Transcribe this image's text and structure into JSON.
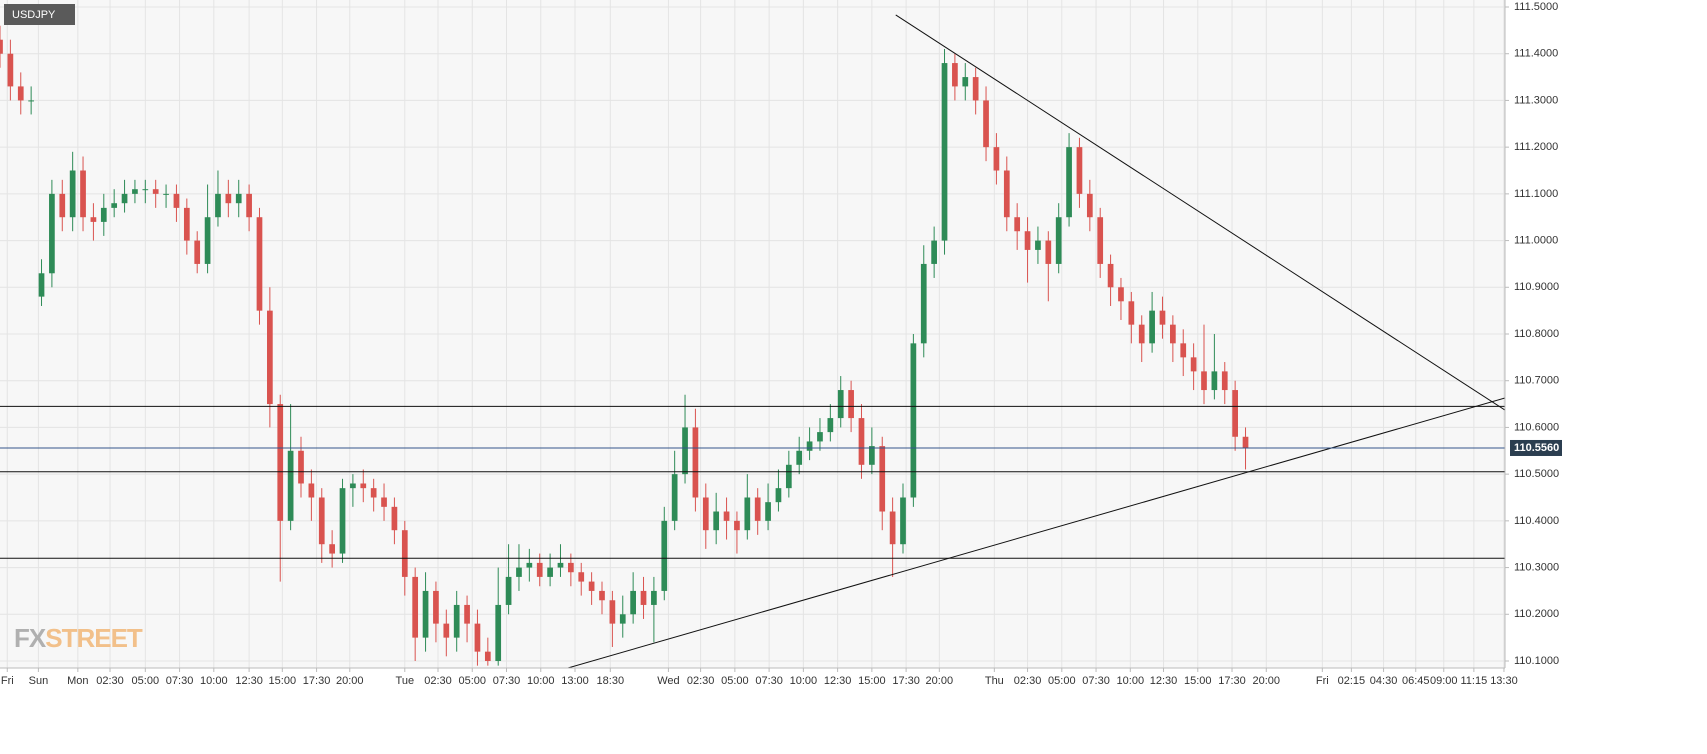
{
  "chart_data": {
    "type": "candlestick",
    "title": "USDJPY",
    "watermark": [
      "FX",
      "STREET"
    ],
    "x": [
      0,
      1,
      2,
      3,
      4,
      5,
      6,
      7,
      8,
      9,
      10,
      11,
      12,
      13,
      14,
      15,
      16,
      17,
      18,
      19,
      20,
      21,
      22,
      23,
      24,
      25,
      26,
      27,
      28,
      29,
      30,
      31,
      32,
      33,
      34,
      35,
      36,
      37,
      38,
      39,
      40,
      41,
      42,
      43,
      44,
      45,
      46,
      47,
      48,
      49,
      50,
      51,
      52,
      53,
      54,
      55,
      56,
      57,
      58,
      59,
      60,
      61,
      62,
      63,
      64,
      65,
      66,
      67,
      68,
      69,
      70,
      71,
      72,
      73,
      74,
      75,
      76,
      77,
      78,
      79,
      80,
      81,
      82,
      83,
      84,
      85,
      86,
      87,
      88,
      89,
      90,
      91,
      92,
      93,
      94,
      95,
      96,
      97,
      98,
      99,
      100,
      101,
      102,
      103,
      104,
      105,
      106,
      107,
      108,
      109,
      110,
      111,
      112,
      113,
      114,
      115,
      116,
      117,
      118,
      119,
      120
    ],
    "open": [
      111.43,
      111.4,
      111.33,
      111.3,
      110.88,
      110.93,
      111.1,
      111.05,
      111.15,
      111.05,
      111.04,
      111.07,
      111.08,
      111.1,
      111.11,
      111.11,
      111.1,
      111.1,
      111.07,
      111.0,
      110.95,
      111.05,
      111.1,
      111.08,
      111.1,
      111.05,
      110.85,
      110.65,
      110.4,
      110.55,
      110.48,
      110.45,
      110.35,
      110.33,
      110.47,
      110.48,
      110.47,
      110.45,
      110.43,
      110.38,
      110.28,
      110.15,
      110.25,
      110.18,
      110.15,
      110.22,
      110.18,
      110.12,
      110.1,
      110.22,
      110.28,
      110.3,
      110.31,
      110.28,
      110.3,
      110.31,
      110.29,
      110.27,
      110.25,
      110.23,
      110.18,
      110.2,
      110.25,
      110.22,
      110.25,
      110.4,
      110.5,
      110.6,
      110.45,
      110.38,
      110.42,
      110.4,
      110.38,
      110.45,
      110.4,
      110.44,
      110.47,
      110.52,
      110.55,
      110.57,
      110.59,
      110.62,
      110.68,
      110.62,
      110.52,
      110.56,
      110.42,
      110.35,
      110.45,
      110.78,
      110.95,
      111.0,
      111.38,
      111.33,
      111.35,
      111.3,
      111.2,
      111.15,
      111.05,
      111.02,
      110.98,
      111.0,
      110.95,
      111.05,
      111.2,
      111.1,
      111.05,
      110.95,
      110.9,
      110.87,
      110.82,
      110.78,
      110.85,
      110.82,
      110.78,
      110.75,
      110.72,
      110.68,
      110.72,
      110.68,
      110.58
    ],
    "high": [
      111.46,
      111.43,
      111.36,
      111.33,
      110.96,
      111.13,
      111.13,
      111.19,
      111.18,
      111.08,
      111.1,
      111.11,
      111.13,
      111.13,
      111.13,
      111.13,
      111.12,
      111.12,
      111.09,
      111.02,
      111.12,
      111.15,
      111.13,
      111.13,
      111.12,
      111.07,
      110.9,
      110.67,
      110.65,
      110.58,
      110.51,
      110.47,
      110.38,
      110.49,
      110.5,
      110.51,
      110.49,
      110.48,
      110.45,
      110.4,
      110.3,
      110.29,
      110.27,
      110.21,
      110.25,
      110.24,
      110.21,
      110.15,
      110.3,
      110.35,
      110.35,
      110.34,
      110.33,
      110.33,
      110.35,
      110.33,
      110.31,
      110.29,
      110.27,
      110.25,
      110.24,
      110.29,
      110.28,
      110.28,
      110.43,
      110.55,
      110.67,
      110.64,
      110.48,
      110.46,
      110.45,
      110.42,
      110.5,
      110.47,
      110.48,
      110.51,
      110.55,
      110.58,
      110.6,
      110.62,
      110.65,
      110.71,
      110.7,
      110.65,
      110.6,
      110.58,
      110.45,
      110.48,
      110.8,
      110.99,
      111.03,
      111.41,
      111.4,
      111.38,
      111.37,
      111.33,
      111.23,
      111.18,
      111.08,
      111.05,
      111.03,
      111.02,
      111.08,
      111.23,
      111.22,
      111.13,
      111.07,
      110.97,
      110.92,
      110.89,
      110.84,
      110.89,
      110.88,
      110.84,
      110.81,
      110.78,
      110.82,
      110.8,
      110.74,
      110.7,
      110.6
    ],
    "low": [
      111.37,
      111.3,
      111.27,
      111.27,
      110.86,
      110.9,
      111.02,
      111.02,
      111.02,
      111.0,
      111.01,
      111.05,
      111.06,
      111.08,
      111.08,
      111.07,
      111.07,
      111.04,
      110.97,
      110.93,
      110.93,
      111.03,
      111.05,
      111.05,
      111.02,
      110.82,
      110.6,
      110.27,
      110.38,
      110.45,
      110.4,
      110.31,
      110.3,
      110.31,
      110.43,
      110.44,
      110.42,
      110.4,
      110.35,
      110.24,
      110.1,
      110.12,
      110.14,
      110.11,
      110.12,
      110.14,
      110.09,
      110.09,
      110.09,
      110.2,
      110.25,
      110.27,
      110.26,
      110.26,
      110.28,
      110.26,
      110.24,
      110.22,
      110.2,
      110.13,
      110.15,
      110.18,
      110.19,
      110.14,
      110.23,
      110.38,
      110.48,
      110.42,
      110.34,
      110.35,
      110.36,
      110.33,
      110.36,
      110.37,
      110.38,
      110.42,
      110.45,
      110.5,
      110.53,
      110.55,
      110.57,
      110.6,
      110.59,
      110.49,
      110.5,
      110.38,
      110.28,
      110.33,
      110.43,
      110.75,
      110.92,
      110.97,
      111.3,
      111.3,
      111.27,
      111.17,
      111.12,
      111.02,
      110.98,
      110.91,
      110.95,
      110.87,
      110.93,
      111.03,
      111.07,
      111.02,
      110.92,
      110.86,
      110.83,
      110.78,
      110.74,
      110.76,
      110.79,
      110.74,
      110.71,
      110.68,
      110.65,
      110.66,
      110.65,
      110.55,
      110.51
    ],
    "close": [
      111.4,
      111.33,
      111.3,
      111.3,
      110.93,
      111.1,
      111.05,
      111.15,
      111.05,
      111.04,
      111.07,
      111.08,
      111.1,
      111.11,
      111.11,
      111.1,
      111.1,
      111.07,
      111.0,
      110.95,
      111.05,
      111.1,
      111.08,
      111.1,
      111.05,
      110.85,
      110.65,
      110.4,
      110.55,
      110.48,
      110.45,
      110.35,
      110.33,
      110.47,
      110.48,
      110.47,
      110.45,
      110.43,
      110.38,
      110.28,
      110.15,
      110.25,
      110.18,
      110.15,
      110.22,
      110.18,
      110.12,
      110.1,
      110.22,
      110.28,
      110.3,
      110.31,
      110.28,
      110.3,
      110.31,
      110.29,
      110.27,
      110.25,
      110.23,
      110.18,
      110.2,
      110.25,
      110.22,
      110.25,
      110.4,
      110.5,
      110.6,
      110.45,
      110.38,
      110.42,
      110.4,
      110.38,
      110.45,
      110.4,
      110.44,
      110.47,
      110.52,
      110.55,
      110.57,
      110.59,
      110.62,
      110.68,
      110.62,
      110.52,
      110.56,
      110.42,
      110.35,
      110.45,
      110.78,
      110.95,
      111.0,
      111.38,
      111.33,
      111.35,
      111.3,
      111.2,
      111.15,
      111.05,
      111.02,
      110.98,
      111.0,
      110.95,
      111.05,
      111.2,
      111.1,
      111.05,
      110.95,
      110.9,
      110.87,
      110.82,
      110.78,
      110.85,
      110.82,
      110.78,
      110.75,
      110.72,
      110.68,
      110.72,
      110.68,
      110.58,
      110.556
    ],
    "up_color": "#2e8b57",
    "down_color": "#d9534f",
    "levels": [
      110.645,
      110.505,
      110.32
    ],
    "last": {
      "value": 110.556,
      "label": "110.5560"
    },
    "trendlines": [
      {
        "x": [
          86.3,
          145
        ],
        "y": [
          111.483,
          110.637
        ]
      },
      {
        "x": [
          54.4,
          145
        ],
        "y": [
          110.083,
          110.663
        ]
      }
    ],
    "xlim": [
      0,
      145
    ],
    "ylim": [
      110.085,
      111.515
    ],
    "yticks": [
      {
        "value": 110.1,
        "label": "110.1000"
      },
      {
        "value": 110.2,
        "label": "110.2000"
      },
      {
        "value": 110.3,
        "label": "110.3000"
      },
      {
        "value": 110.4,
        "label": "110.4000"
      },
      {
        "value": 110.5,
        "label": "110.5000"
      },
      {
        "value": 110.6,
        "label": "110.6000"
      },
      {
        "value": 110.7,
        "label": "110.7000"
      },
      {
        "value": 110.8,
        "label": "110.8000"
      },
      {
        "value": 110.9,
        "label": "110.9000"
      },
      {
        "value": 111.0,
        "label": "111.0000"
      },
      {
        "value": 111.1,
        "label": "111.1000"
      },
      {
        "value": 111.2,
        "label": "111.2000"
      },
      {
        "value": 111.3,
        "label": "111.3000"
      },
      {
        "value": 111.4,
        "label": "111.4000"
      },
      {
        "value": 111.5,
        "label": "111.5000"
      }
    ],
    "xticks": [
      {
        "value": 0.7,
        "label": "Fri"
      },
      {
        "value": 3.7,
        "label": "Sun"
      },
      {
        "value": 7.5,
        "label": "Mon"
      },
      {
        "value": 10.6,
        "label": "02:30"
      },
      {
        "value": 14.0,
        "label": "05:00"
      },
      {
        "value": 17.3,
        "label": "07:30"
      },
      {
        "value": 20.6,
        "label": "10:00"
      },
      {
        "value": 24.0,
        "label": "12:30"
      },
      {
        "value": 27.2,
        "label": "15:00"
      },
      {
        "value": 30.5,
        "label": "17:30"
      },
      {
        "value": 33.7,
        "label": "20:00"
      },
      {
        "value": 39.0,
        "label": "Tue"
      },
      {
        "value": 42.2,
        "label": "02:30"
      },
      {
        "value": 45.5,
        "label": "05:00"
      },
      {
        "value": 48.8,
        "label": "07:30"
      },
      {
        "value": 52.1,
        "label": "10:00"
      },
      {
        "value": 55.4,
        "label": "13:00"
      },
      {
        "value": 58.8,
        "label": "18:30"
      },
      {
        "value": 64.4,
        "label": "Wed"
      },
      {
        "value": 67.5,
        "label": "02:30"
      },
      {
        "value": 70.8,
        "label": "05:00"
      },
      {
        "value": 74.1,
        "label": "07:30"
      },
      {
        "value": 77.4,
        "label": "10:00"
      },
      {
        "value": 80.7,
        "label": "12:30"
      },
      {
        "value": 84.0,
        "label": "15:00"
      },
      {
        "value": 87.3,
        "label": "17:30"
      },
      {
        "value": 90.5,
        "label": "20:00"
      },
      {
        "value": 95.8,
        "label": "Thu"
      },
      {
        "value": 99.0,
        "label": "02:30"
      },
      {
        "value": 102.3,
        "label": "05:00"
      },
      {
        "value": 105.6,
        "label": "07:30"
      },
      {
        "value": 108.9,
        "label": "10:00"
      },
      {
        "value": 112.1,
        "label": "12:30"
      },
      {
        "value": 115.4,
        "label": "15:00"
      },
      {
        "value": 118.7,
        "label": "17:30"
      },
      {
        "value": 122.0,
        "label": "20:00"
      },
      {
        "value": 127.4,
        "label": "Fri"
      },
      {
        "value": 130.2,
        "label": "02:15"
      },
      {
        "value": 133.3,
        "label": "04:30"
      },
      {
        "value": 136.4,
        "label": "06:45"
      },
      {
        "value": 139.1,
        "label": "09:00"
      },
      {
        "value": 142.0,
        "label": "11:15"
      },
      {
        "value": 144.9,
        "label": "13:30"
      }
    ],
    "grid": true
  }
}
